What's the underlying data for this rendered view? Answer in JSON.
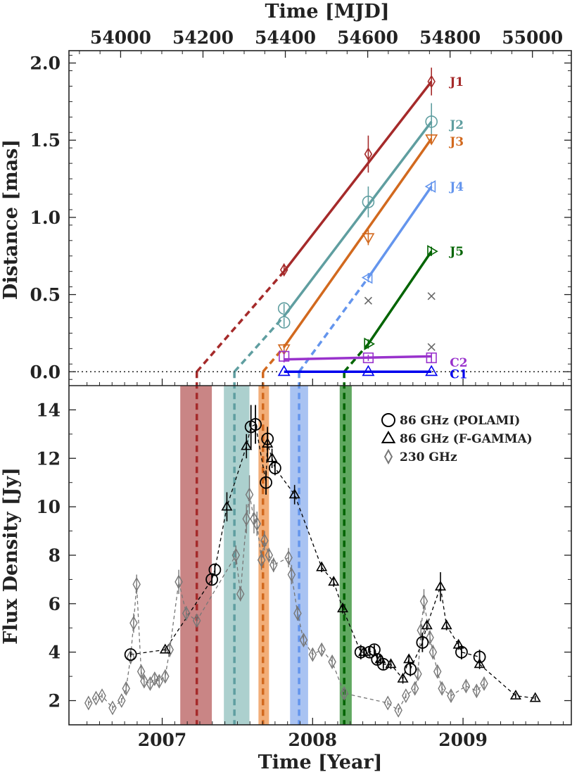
{
  "chart_data": [
    {
      "panel": "top",
      "type": "line",
      "title": "",
      "xlabel": "Time [MJD]",
      "ylabel": "Distance [mas]",
      "xlim": [
        2006.38,
        2009.72
      ],
      "ylim": [
        -0.09,
        2.08
      ],
      "xticks": [
        {
          "value": 54000,
          "label": "54000"
        },
        {
          "value": 54200,
          "label": "54200"
        },
        {
          "value": 54400,
          "label": "54400"
        },
        {
          "value": 54600,
          "label": "54600"
        },
        {
          "value": 54800,
          "label": "54800"
        },
        {
          "value": 55000,
          "label": "55000"
        }
      ],
      "yticks": [
        {
          "value": 0.0,
          "label": "0.0"
        },
        {
          "value": 0.5,
          "label": "0.5"
        },
        {
          "value": 1.0,
          "label": "1.0"
        },
        {
          "value": 1.5,
          "label": "1.5"
        },
        {
          "value": 2.0,
          "label": "2.0"
        }
      ],
      "zero_line": true,
      "components": [
        {
          "name": "J1",
          "color": "#a52a2a",
          "marker": "diamond",
          "ejection": 2007.23,
          "points": [
            {
              "x": 2007.81,
              "y": 0.66,
              "err": 0.04
            },
            {
              "x": 2008.37,
              "y": 1.41,
              "err": 0.12
            },
            {
              "x": 2008.79,
              "y": 1.88,
              "err": 0.09
            }
          ],
          "fit": [
            2007.81,
            0.65,
            2008.79,
            1.88
          ]
        },
        {
          "name": "J2",
          "color": "#5f9ea0",
          "marker": "circle",
          "ejection": 2007.48,
          "points": [
            {
              "x": 2007.81,
              "y": 0.41,
              "err": 0.03
            },
            {
              "x": 2007.81,
              "y": 0.32,
              "err": 0.03
            },
            {
              "x": 2008.37,
              "y": 1.1,
              "err": 0.1
            },
            {
              "x": 2008.79,
              "y": 1.62,
              "err": 0.12
            }
          ],
          "fit": [
            2007.81,
            0.36,
            2008.79,
            1.62
          ]
        },
        {
          "name": "J3",
          "color": "#d2691e",
          "marker": "triangle-down",
          "ejection": 2007.67,
          "points": [
            {
              "x": 2007.81,
              "y": 0.15,
              "err": 0.03
            },
            {
              "x": 2008.37,
              "y": 0.87,
              "err": 0.05
            },
            {
              "x": 2008.79,
              "y": 1.51,
              "err": 0.03
            }
          ],
          "fit": [
            2007.81,
            0.16,
            2008.79,
            1.51
          ]
        },
        {
          "name": "J4",
          "color": "#6495ed",
          "marker": "triangle-left",
          "ejection": 2007.91,
          "points": [
            {
              "x": 2008.37,
              "y": 0.61,
              "err": 0.03
            },
            {
              "x": 2008.79,
              "y": 1.2,
              "err": 0.03
            }
          ],
          "fit": [
            2008.37,
            0.61,
            2008.79,
            1.2
          ]
        },
        {
          "name": "J5",
          "color": "#006400",
          "marker": "triangle-right",
          "ejection": 2008.21,
          "points": [
            {
              "x": 2008.37,
              "y": 0.18,
              "err": 0.03
            },
            {
              "x": 2008.79,
              "y": 0.78,
              "err": 0.03
            }
          ],
          "fit": [
            2008.37,
            0.18,
            2008.79,
            0.78
          ]
        },
        {
          "name": "C2",
          "color": "#9932cc",
          "marker": "square",
          "ejection": null,
          "points": [
            {
              "x": 2007.81,
              "y": 0.1,
              "err": 0.04
            },
            {
              "x": 2008.37,
              "y": 0.09,
              "err": 0.02
            },
            {
              "x": 2008.79,
              "y": 0.09,
              "err": 0.03
            }
          ],
          "fit": [
            2007.81,
            0.08,
            2008.79,
            0.1
          ]
        },
        {
          "name": "C1",
          "color": "#0000ee",
          "marker": "triangle-up",
          "ejection": null,
          "points": [
            {
              "x": 2007.81,
              "y": 0.0,
              "err": 0.0
            },
            {
              "x": 2008.37,
              "y": 0.0,
              "err": 0.0
            },
            {
              "x": 2008.79,
              "y": 0.0,
              "err": 0.0
            }
          ],
          "fit": [
            2007.81,
            0.0,
            2008.79,
            0.0
          ]
        }
      ],
      "unassigned_points": [
        {
          "x": 2008.37,
          "y": 0.46
        },
        {
          "x": 2008.79,
          "y": 0.49
        },
        {
          "x": 2008.79,
          "y": 0.16
        }
      ]
    },
    {
      "panel": "bottom",
      "type": "scatter",
      "title": "",
      "xlabel": "Time [Year]",
      "ylabel": "Flux Density [Jy]",
      "xlim": [
        2006.38,
        2009.72
      ],
      "ylim": [
        1,
        15
      ],
      "xticks": [
        {
          "value": 2007,
          "label": "2007"
        },
        {
          "value": 2008,
          "label": "2008"
        },
        {
          "value": 2009,
          "label": "2009"
        }
      ],
      "yticks": [
        {
          "value": 2,
          "label": "2"
        },
        {
          "value": 4,
          "label": "4"
        },
        {
          "value": 6,
          "label": "6"
        },
        {
          "value": 8,
          "label": "8"
        },
        {
          "value": 10,
          "label": "10"
        },
        {
          "value": 12,
          "label": "12"
        },
        {
          "value": 14,
          "label": "14"
        }
      ],
      "legend_position": "top-right",
      "bands": [
        {
          "component": "J1",
          "x0": 2007.12,
          "x1": 2007.33,
          "color": "#c07070"
        },
        {
          "component": "J2",
          "x0": 2007.41,
          "x1": 2007.58,
          "color": "#9ec8c6"
        },
        {
          "component": "J3",
          "x0": 2007.64,
          "x1": 2007.71,
          "color": "#f0a060"
        },
        {
          "component": "J4",
          "x0": 2007.85,
          "x1": 2007.97,
          "color": "#9ab8f0"
        },
        {
          "component": "J5",
          "x0": 2008.18,
          "x1": 2008.26,
          "color": "#449944"
        }
      ],
      "series": [
        {
          "name": "86 GHz (POLAMI)",
          "marker": "circle",
          "color": "#000000",
          "points": [
            [
              2006.79,
              3.9,
              0.1
            ],
            [
              2007.33,
              7.0,
              0.2
            ],
            [
              2007.35,
              7.4,
              0.25
            ],
            [
              2007.59,
              13.3,
              0.9
            ],
            [
              2007.62,
              13.4,
              0.8
            ],
            [
              2007.69,
              11.0,
              0.5
            ],
            [
              2007.7,
              12.8,
              0.3
            ],
            [
              2007.75,
              11.6,
              0.3
            ],
            [
              2008.32,
              4.0,
              0.3
            ],
            [
              2008.38,
              4.0,
              0.2
            ],
            [
              2008.41,
              4.1,
              0.2
            ],
            [
              2008.43,
              3.7,
              0.2
            ],
            [
              2008.47,
              3.5,
              0.2
            ],
            [
              2008.65,
              3.3,
              0.3
            ],
            [
              2008.73,
              4.4,
              0.4
            ],
            [
              2008.99,
              4.0,
              0.3
            ],
            [
              2009.11,
              3.8,
              0.3
            ]
          ]
        },
        {
          "name": "86 GHz (F-GAMMA)",
          "marker": "triangle-up",
          "color": "#000000",
          "points": [
            [
              2007.02,
              4.1,
              0.1
            ],
            [
              2007.43,
              10.0,
              0.6
            ],
            [
              2007.56,
              12.5,
              0.5
            ],
            [
              2007.7,
              12.6,
              0.7
            ],
            [
              2007.73,
              12.0,
              0.4
            ],
            [
              2007.88,
              10.5,
              0.4
            ],
            [
              2008.06,
              7.5,
              0.2
            ],
            [
              2008.14,
              6.9,
              0.2
            ],
            [
              2008.2,
              5.8,
              0.2
            ],
            [
              2008.34,
              4.0,
              0.2
            ],
            [
              2008.45,
              3.7,
              0.2
            ],
            [
              2008.52,
              3.5,
              0.2
            ],
            [
              2008.6,
              2.9,
              0.2
            ],
            [
              2008.64,
              3.7,
              0.2
            ],
            [
              2008.76,
              5.1,
              0.2
            ],
            [
              2008.85,
              6.7,
              0.6
            ],
            [
              2008.89,
              5.1,
              0.2
            ],
            [
              2008.97,
              4.3,
              0.2
            ],
            [
              2009.11,
              3.5,
              0.2
            ],
            [
              2009.35,
              2.2,
              0.1
            ],
            [
              2009.48,
              2.1,
              0.1
            ]
          ]
        },
        {
          "name": "230 GHz",
          "marker": "thin-diamond",
          "color": "#777777",
          "points": [
            [
              2006.51,
              1.9,
              0.1
            ],
            [
              2006.56,
              2.1,
              0.1
            ],
            [
              2006.6,
              2.2,
              0.1
            ],
            [
              2006.67,
              1.7,
              0.1
            ],
            [
              2006.73,
              2.0,
              0.1
            ],
            [
              2006.76,
              2.5,
              0.2
            ],
            [
              2006.79,
              3.8,
              0.3
            ],
            [
              2006.81,
              5.2,
              0.4
            ],
            [
              2006.83,
              6.8,
              0.4
            ],
            [
              2006.86,
              3.2,
              0.2
            ],
            [
              2006.88,
              2.8,
              0.2
            ],
            [
              2006.92,
              2.7,
              0.2
            ],
            [
              2006.95,
              2.9,
              0.2
            ],
            [
              2006.98,
              2.8,
              0.2
            ],
            [
              2007.02,
              3.0,
              0.2
            ],
            [
              2007.05,
              4.1,
              0.3
            ],
            [
              2007.11,
              6.9,
              0.5
            ],
            [
              2007.16,
              5.6,
              0.3
            ],
            [
              2007.23,
              5.3,
              0.2
            ],
            [
              2007.49,
              8.0,
              0.4
            ],
            [
              2007.52,
              6.4,
              0.3
            ],
            [
              2007.56,
              9.5,
              0.6
            ],
            [
              2007.58,
              10.5,
              0.8
            ],
            [
              2007.61,
              9.5,
              0.6
            ],
            [
              2007.63,
              9.3,
              0.5
            ],
            [
              2007.66,
              7.8,
              0.4
            ],
            [
              2007.68,
              8.6,
              0.4
            ],
            [
              2007.71,
              8.0,
              0.3
            ],
            [
              2007.74,
              7.6,
              0.3
            ],
            [
              2007.84,
              7.9,
              0.4
            ],
            [
              2007.86,
              7.2,
              0.4
            ],
            [
              2007.9,
              5.6,
              0.3
            ],
            [
              2007.94,
              4.5,
              0.2
            ],
            [
              2008.0,
              3.9,
              0.2
            ],
            [
              2008.06,
              4.1,
              0.2
            ],
            [
              2008.13,
              3.6,
              0.2
            ],
            [
              2008.21,
              2.3,
              0.2
            ],
            [
              2008.5,
              1.9,
              0.1
            ],
            [
              2008.57,
              1.6,
              0.1
            ],
            [
              2008.62,
              2.2,
              0.1
            ],
            [
              2008.68,
              2.5,
              0.2
            ],
            [
              2008.7,
              3.1,
              0.2
            ],
            [
              2008.72,
              4.9,
              0.4
            ],
            [
              2008.74,
              6.1,
              0.5
            ],
            [
              2008.78,
              4.6,
              0.3
            ],
            [
              2008.8,
              4.0,
              0.3
            ],
            [
              2008.83,
              3.2,
              0.2
            ],
            [
              2008.86,
              2.5,
              0.2
            ],
            [
              2008.92,
              2.2,
              0.2
            ],
            [
              2009.02,
              2.6,
              0.2
            ],
            [
              2009.09,
              2.4,
              0.2
            ],
            [
              2009.14,
              2.7,
              0.2
            ]
          ]
        }
      ]
    }
  ]
}
